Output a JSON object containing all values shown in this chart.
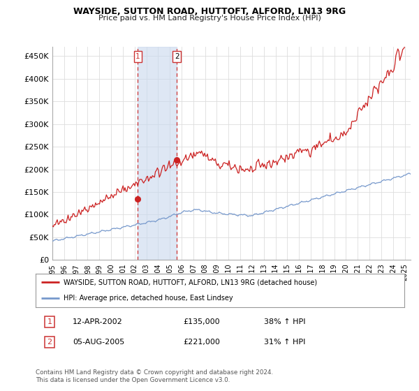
{
  "title": "WAYSIDE, SUTTON ROAD, HUTTOFT, ALFORD, LN13 9RG",
  "subtitle": "Price paid vs. HM Land Registry's House Price Index (HPI)",
  "ylabel_values": [
    0,
    50000,
    100000,
    150000,
    200000,
    250000,
    300000,
    350000,
    400000,
    450000
  ],
  "ylim": [
    0,
    470000
  ],
  "xlim_start": 1995.0,
  "xlim_end": 2025.5,
  "hpi_color": "#7799cc",
  "price_color": "#cc2222",
  "sale1_price": 135000,
  "sale1_hpi_pct": "38%",
  "sale1_date": "12-APR-2002",
  "sale2_date": "05-AUG-2005",
  "sale2_price": 221000,
  "sale2_hpi_pct": "31%",
  "sale1_x": 2002.28,
  "sale2_x": 2005.59,
  "vline_color": "#cc3333",
  "shade_color": "#c8d8ee",
  "legend_label1": "WAYSIDE, SUTTON ROAD, HUTTOFT, ALFORD, LN13 9RG (detached house)",
  "legend_label2": "HPI: Average price, detached house, East Lindsey",
  "footer": "Contains HM Land Registry data © Crown copyright and database right 2024.\nThis data is licensed under the Open Government Licence v3.0.",
  "background_color": "#ffffff",
  "grid_color": "#dddddd"
}
